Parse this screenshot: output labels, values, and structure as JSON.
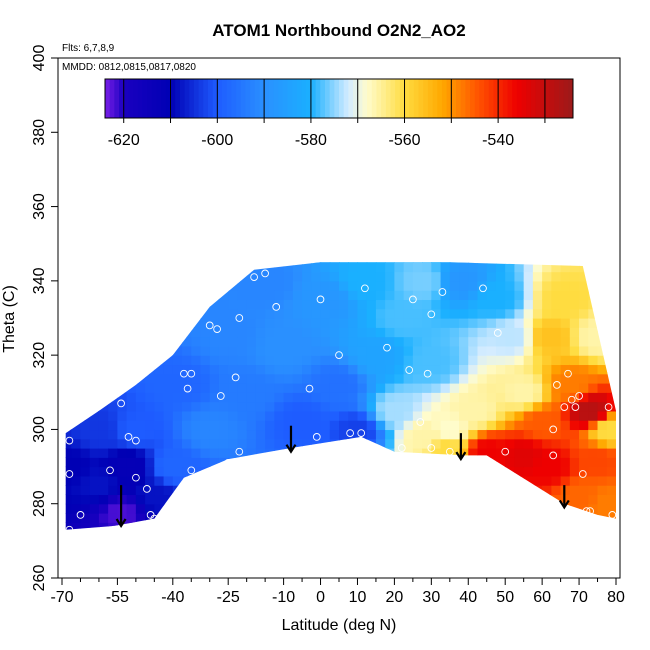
{
  "chart_data": {
    "type": "heatmap",
    "title": "ATOM1 Northbound O2N2_AO2",
    "annotations": [
      "Flts: 6,7,8,9",
      "MMDD: 0812,0815,0817,0820"
    ],
    "xlabel": "Latitude (deg N)",
    "ylabel": "Theta (C)",
    "xlim": [
      -70,
      80
    ],
    "ylim": [
      260,
      400
    ],
    "x_ticks": [
      -70,
      -55,
      -40,
      -25,
      -10,
      0,
      10,
      20,
      30,
      40,
      50,
      60,
      70,
      80
    ],
    "x_ticks_minor": [
      -65,
      -60,
      -50,
      -45,
      -35,
      -30,
      -20,
      -15,
      -5,
      5,
      15,
      25,
      35,
      45,
      55,
      65,
      75
    ],
    "y_ticks": [
      260,
      280,
      300,
      320,
      340,
      360,
      380,
      400
    ],
    "colorbar": {
      "range": [
        -624,
        -524
      ],
      "ticks": [
        -620,
        -600,
        -580,
        -560,
        -540
      ],
      "levels": [
        -624,
        -620,
        -610,
        -600,
        -590,
        -580,
        -570,
        -560,
        -550,
        -540,
        -530,
        -524
      ],
      "stops": [
        {
          "v": -624,
          "c": "#7a1fe8"
        },
        {
          "v": -620,
          "c": "#1a00c0"
        },
        {
          "v": -610,
          "c": "#0000b4"
        },
        {
          "v": -600,
          "c": "#1e5cff"
        },
        {
          "v": -590,
          "c": "#2a90ff"
        },
        {
          "v": -580,
          "c": "#1ab0ff"
        },
        {
          "v": -572,
          "c": "#d4ecff"
        },
        {
          "v": -568,
          "c": "#fffccc"
        },
        {
          "v": -560,
          "c": "#ffdc40"
        },
        {
          "v": -552,
          "c": "#ffa800"
        },
        {
          "v": -544,
          "c": "#ff5000"
        },
        {
          "v": -536,
          "c": "#ee0000"
        },
        {
          "v": -524,
          "c": "#9c1a1a"
        }
      ]
    },
    "field_polygon": [
      [
        -69,
        273
      ],
      [
        -56,
        274
      ],
      [
        -45,
        276
      ],
      [
        -37,
        287
      ],
      [
        -25,
        292
      ],
      [
        -8,
        295
      ],
      [
        11,
        298
      ],
      [
        20,
        294
      ],
      [
        39,
        293
      ],
      [
        45,
        293
      ],
      [
        66,
        280
      ],
      [
        75,
        277
      ],
      [
        80,
        276
      ],
      [
        80,
        305
      ],
      [
        71,
        344
      ],
      [
        35,
        345
      ],
      [
        20,
        345
      ],
      [
        0,
        345
      ],
      [
        -18,
        343
      ],
      [
        -30,
        333
      ],
      [
        -40,
        320
      ],
      [
        -50,
        312
      ],
      [
        -60,
        305
      ],
      [
        -69,
        299
      ]
    ],
    "control_points": [
      {
        "lat": -68,
        "theta": 290,
        "v": -610
      },
      {
        "lat": -60,
        "theta": 285,
        "v": -608
      },
      {
        "lat": -54,
        "theta": 278,
        "v": -622
      },
      {
        "lat": -52,
        "theta": 290,
        "v": -612
      },
      {
        "lat": -45,
        "theta": 282,
        "v": -608
      },
      {
        "lat": -60,
        "theta": 300,
        "v": -604
      },
      {
        "lat": -50,
        "theta": 300,
        "v": -600
      },
      {
        "lat": -40,
        "theta": 290,
        "v": -598
      },
      {
        "lat": -38,
        "theta": 312,
        "v": -598
      },
      {
        "lat": -30,
        "theta": 300,
        "v": -592
      },
      {
        "lat": -25,
        "theta": 325,
        "v": -592
      },
      {
        "lat": -20,
        "theta": 310,
        "v": -594
      },
      {
        "lat": -15,
        "theta": 340,
        "v": -592
      },
      {
        "lat": -10,
        "theta": 322,
        "v": -590
      },
      {
        "lat": -5,
        "theta": 302,
        "v": -600
      },
      {
        "lat": 5,
        "theta": 312,
        "v": -596
      },
      {
        "lat": 10,
        "theta": 300,
        "v": -603
      },
      {
        "lat": 2,
        "theta": 335,
        "v": -588
      },
      {
        "lat": 12,
        "theta": 340,
        "v": -580
      },
      {
        "lat": 15,
        "theta": 320,
        "v": -584
      },
      {
        "lat": 20,
        "theta": 305,
        "v": -574
      },
      {
        "lat": 22,
        "theta": 330,
        "v": -578
      },
      {
        "lat": 28,
        "theta": 340,
        "v": -576
      },
      {
        "lat": 30,
        "theta": 318,
        "v": -578
      },
      {
        "lat": 38,
        "theta": 340,
        "v": -588
      },
      {
        "lat": 48,
        "theta": 335,
        "v": -580
      },
      {
        "lat": 52,
        "theta": 325,
        "v": -573
      },
      {
        "lat": 28,
        "theta": 298,
        "v": -566
      },
      {
        "lat": 35,
        "theta": 300,
        "v": -568
      },
      {
        "lat": 34,
        "theta": 295,
        "v": -560
      },
      {
        "lat": 42,
        "theta": 305,
        "v": -566
      },
      {
        "lat": 55,
        "theta": 310,
        "v": -566
      },
      {
        "lat": 62,
        "theta": 325,
        "v": -556
      },
      {
        "lat": 66,
        "theta": 335,
        "v": -560
      },
      {
        "lat": 45,
        "theta": 294,
        "v": -536
      },
      {
        "lat": 55,
        "theta": 293,
        "v": -534
      },
      {
        "lat": 62,
        "theta": 290,
        "v": -536
      },
      {
        "lat": 60,
        "theta": 302,
        "v": -545
      },
      {
        "lat": 68,
        "theta": 312,
        "v": -548
      },
      {
        "lat": 73,
        "theta": 305,
        "v": -528
      },
      {
        "lat": 75,
        "theta": 292,
        "v": -543
      },
      {
        "lat": 70,
        "theta": 282,
        "v": -546
      },
      {
        "lat": 78,
        "theta": 280,
        "v": -548
      },
      {
        "lat": 78,
        "theta": 300,
        "v": -560
      },
      {
        "lat": 75,
        "theta": 325,
        "v": -566
      }
    ],
    "observations": [
      [
        -68,
        297
      ],
      [
        -68,
        288
      ],
      [
        -68,
        273
      ],
      [
        -65,
        277
      ],
      [
        -57,
        289
      ],
      [
        -56,
        273
      ],
      [
        -54,
        307
      ],
      [
        -52,
        298
      ],
      [
        -50,
        297
      ],
      [
        -50,
        287
      ],
      [
        -47,
        284
      ],
      [
        -46,
        277
      ],
      [
        -45,
        276
      ],
      [
        -37,
        315
      ],
      [
        -36,
        311
      ],
      [
        -35,
        315
      ],
      [
        -35,
        289
      ],
      [
        -30,
        328
      ],
      [
        -28,
        327
      ],
      [
        -27,
        309
      ],
      [
        -25,
        291
      ],
      [
        -23,
        314
      ],
      [
        -22,
        330
      ],
      [
        -22,
        294
      ],
      [
        -18,
        341
      ],
      [
        -15,
        342
      ],
      [
        -12,
        333
      ],
      [
        -3,
        311
      ],
      [
        -1,
        298
      ],
      [
        0,
        335
      ],
      [
        5,
        320
      ],
      [
        8,
        299
      ],
      [
        11,
        299
      ],
      [
        12,
        338
      ],
      [
        18,
        322
      ],
      [
        22,
        295
      ],
      [
        24,
        316
      ],
      [
        25,
        335
      ],
      [
        27,
        302
      ],
      [
        29,
        315
      ],
      [
        30,
        331
      ],
      [
        30,
        295
      ],
      [
        33,
        337
      ],
      [
        35,
        294
      ],
      [
        44,
        338
      ],
      [
        48,
        326
      ],
      [
        50,
        294
      ],
      [
        63,
        300
      ],
      [
        63,
        293
      ],
      [
        64,
        312
      ],
      [
        66,
        306
      ],
      [
        67,
        315
      ],
      [
        68,
        308
      ],
      [
        69,
        306
      ],
      [
        70,
        309
      ],
      [
        71,
        288
      ],
      [
        72,
        278
      ],
      [
        73,
        278
      ],
      [
        78,
        306
      ],
      [
        79,
        277
      ]
    ],
    "arrows": [
      {
        "lat": -54,
        "theta_top": 285,
        "theta_bottom": 274
      },
      {
        "lat": -8,
        "theta_top": 301,
        "theta_bottom": 294
      },
      {
        "lat": 38,
        "theta_top": 299,
        "theta_bottom": 292
      },
      {
        "lat": 66,
        "theta_top": 285,
        "theta_bottom": 279
      }
    ]
  }
}
